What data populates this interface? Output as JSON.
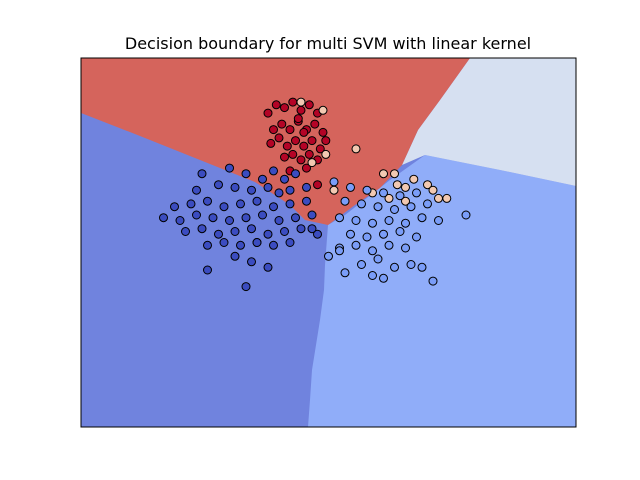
{
  "chart_data": {
    "type": "scatter",
    "title": "Decision boundary for multi SVM with linear kernel",
    "xlabel": "",
    "ylabel": "",
    "grid": false,
    "axis_ticks": false,
    "region_colors": {
      "class_0": "#7083de",
      "class_1": "#90adf9",
      "class_2": "#d6e0f1",
      "class_3": "#d5645c"
    },
    "point_colors": {
      "class_0": "#3b4cc0",
      "class_1": "#7a9df8",
      "class_2": "#f2c9b2",
      "class_3": "#b40426"
    },
    "series": [
      {
        "class": "class_3",
        "points": [
          [
            -0.6,
            2.3
          ],
          [
            -0.45,
            2.45
          ],
          [
            -0.3,
            2.4
          ],
          [
            -0.15,
            2.5
          ],
          [
            0.0,
            2.35
          ],
          [
            0.15,
            2.45
          ],
          [
            0.3,
            2.3
          ],
          [
            -0.5,
            2.0
          ],
          [
            -0.35,
            2.1
          ],
          [
            -0.2,
            2.0
          ],
          [
            -0.05,
            2.15
          ],
          [
            0.1,
            2.0
          ],
          [
            0.25,
            2.1
          ],
          [
            0.4,
            1.95
          ],
          [
            -0.55,
            1.75
          ],
          [
            -0.4,
            1.85
          ],
          [
            -0.25,
            1.7
          ],
          [
            -0.1,
            1.8
          ],
          [
            0.05,
            1.7
          ],
          [
            0.2,
            1.8
          ],
          [
            0.35,
            1.65
          ],
          [
            0.45,
            1.8
          ],
          [
            -0.3,
            1.5
          ],
          [
            -0.15,
            1.55
          ],
          [
            0.0,
            1.45
          ],
          [
            0.15,
            1.55
          ],
          [
            0.3,
            1.45
          ],
          [
            0.1,
            1.3
          ],
          [
            -0.2,
            1.25
          ],
          [
            0.3,
            1.0
          ],
          [
            -0.05,
            2.2
          ],
          [
            0.05,
            1.95
          ]
        ]
      },
      {
        "class": "class_2",
        "points": [
          [
            1.0,
            1.65
          ],
          [
            0.45,
            1.55
          ],
          [
            1.5,
            1.2
          ],
          [
            1.75,
            1.0
          ],
          [
            1.9,
            0.95
          ],
          [
            2.3,
            1.0
          ],
          [
            2.5,
            0.75
          ],
          [
            2.65,
            0.75
          ],
          [
            2.05,
            1.1
          ],
          [
            0.6,
            0.9
          ],
          [
            1.6,
            0.75
          ],
          [
            1.3,
            0.85
          ],
          [
            1.7,
            1.2
          ],
          [
            0.0,
            2.5
          ],
          [
            0.2,
            1.4
          ],
          [
            0.4,
            2.35
          ],
          [
            1.9,
            0.7
          ],
          [
            2.4,
            0.9
          ]
        ]
      },
      {
        "class": "class_0",
        "points": [
          [
            -1.8,
            1.2
          ],
          [
            -1.3,
            1.3
          ],
          [
            -1.0,
            1.2
          ],
          [
            -0.7,
            1.1
          ],
          [
            -0.5,
            1.25
          ],
          [
            -0.3,
            1.1
          ],
          [
            -0.1,
            1.2
          ],
          [
            -1.9,
            0.9
          ],
          [
            -1.5,
            1.0
          ],
          [
            -1.2,
            0.95
          ],
          [
            -0.9,
            0.9
          ],
          [
            -0.6,
            0.95
          ],
          [
            -0.4,
            0.85
          ],
          [
            -0.2,
            0.9
          ],
          [
            0.1,
            0.95
          ],
          [
            -2.3,
            0.6
          ],
          [
            -2.0,
            0.65
          ],
          [
            -1.7,
            0.7
          ],
          [
            -1.4,
            0.6
          ],
          [
            -1.1,
            0.65
          ],
          [
            -0.8,
            0.7
          ],
          [
            -0.5,
            0.6
          ],
          [
            -0.2,
            0.65
          ],
          [
            0.1,
            0.7
          ],
          [
            -2.5,
            0.4
          ],
          [
            -2.2,
            0.35
          ],
          [
            -1.9,
            0.45
          ],
          [
            -1.6,
            0.4
          ],
          [
            -1.3,
            0.35
          ],
          [
            -1.0,
            0.4
          ],
          [
            -0.7,
            0.45
          ],
          [
            -0.4,
            0.35
          ],
          [
            -0.1,
            0.4
          ],
          [
            0.2,
            0.45
          ],
          [
            -2.1,
            0.15
          ],
          [
            -1.8,
            0.2
          ],
          [
            -1.5,
            0.1
          ],
          [
            -1.2,
            0.15
          ],
          [
            -0.9,
            0.2
          ],
          [
            -0.6,
            0.1
          ],
          [
            -0.3,
            0.15
          ],
          [
            0.0,
            0.2
          ],
          [
            0.3,
            0.1
          ],
          [
            -1.7,
            -0.1
          ],
          [
            -1.4,
            -0.05
          ],
          [
            -1.1,
            -0.1
          ],
          [
            -0.8,
            -0.05
          ],
          [
            -0.5,
            -0.1
          ],
          [
            -0.2,
            -0.05
          ],
          [
            -1.7,
            -0.55
          ],
          [
            -1.2,
            -0.3
          ],
          [
            -0.9,
            -0.4
          ],
          [
            -0.6,
            -0.5
          ],
          [
            -1.0,
            -0.85
          ],
          [
            -0.8,
            -0.05
          ],
          [
            0.2,
            0.2
          ]
        ]
      },
      {
        "class": "class_1",
        "points": [
          [
            0.6,
            1.05
          ],
          [
            0.9,
            0.95
          ],
          [
            1.2,
            0.9
          ],
          [
            1.5,
            0.85
          ],
          [
            1.8,
            0.8
          ],
          [
            2.1,
            0.85
          ],
          [
            0.8,
            0.7
          ],
          [
            1.1,
            0.65
          ],
          [
            1.4,
            0.6
          ],
          [
            1.7,
            0.55
          ],
          [
            2.0,
            0.6
          ],
          [
            2.3,
            0.65
          ],
          [
            3.0,
            0.45
          ],
          [
            0.7,
            0.4
          ],
          [
            1.0,
            0.35
          ],
          [
            1.3,
            0.3
          ],
          [
            1.6,
            0.35
          ],
          [
            1.9,
            0.3
          ],
          [
            2.2,
            0.4
          ],
          [
            2.5,
            0.35
          ],
          [
            0.9,
            0.1
          ],
          [
            1.2,
            0.05
          ],
          [
            1.5,
            0.1
          ],
          [
            1.8,
            0.15
          ],
          [
            2.1,
            0.05
          ],
          [
            0.7,
            -0.15
          ],
          [
            1.0,
            -0.1
          ],
          [
            1.3,
            -0.2
          ],
          [
            1.6,
            -0.1
          ],
          [
            1.9,
            -0.15
          ],
          [
            0.5,
            -0.3
          ],
          [
            1.1,
            -0.45
          ],
          [
            1.4,
            -0.35
          ],
          [
            1.7,
            -0.5
          ],
          [
            2.0,
            -0.45
          ],
          [
            2.4,
            -0.75
          ],
          [
            0.8,
            -0.6
          ],
          [
            1.5,
            -0.7
          ],
          [
            1.3,
            -0.65
          ],
          [
            2.2,
            -0.5
          ],
          [
            0.7,
            -0.2
          ]
        ]
      }
    ],
    "axis_range": {
      "xlim": [
        -4.0,
        5.0
      ],
      "ylim": [
        -3.4,
        3.3
      ]
    }
  }
}
